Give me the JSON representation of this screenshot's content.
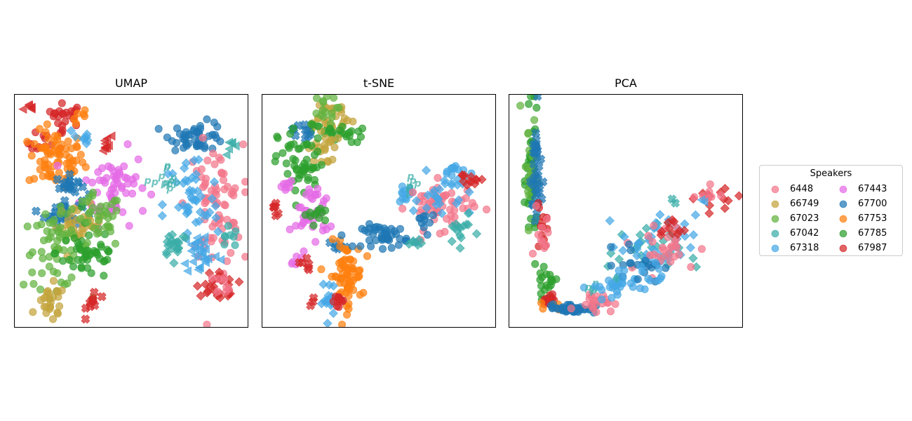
{
  "chart_data": {
    "type": "scatter",
    "legend": {
      "title": "Speakers",
      "placement": "right",
      "entries": [
        {
          "speaker": "6448",
          "color": "#f3768a"
        },
        {
          "speaker": "66749",
          "color": "#c3a43c"
        },
        {
          "speaker": "67023",
          "color": "#62b340"
        },
        {
          "speaker": "67042",
          "color": "#3aada8"
        },
        {
          "speaker": "67318",
          "color": "#45a8e6"
        },
        {
          "speaker": "67443",
          "color": "#e56be6"
        },
        {
          "speaker": "67700",
          "color": "#1f77b4"
        },
        {
          "speaker": "67753",
          "color": "#ff7f0e"
        },
        {
          "speaker": "67785",
          "color": "#2ca02c"
        },
        {
          "speaker": "67987",
          "color": "#d62728"
        }
      ]
    },
    "marker_shapes": [
      "circle",
      "x",
      "diamond",
      "triangle-left",
      "p-glyph"
    ],
    "grid": false,
    "axis_ticks": false,
    "panels": [
      {
        "title": "UMAP",
        "xlim": [
          0,
          100
        ],
        "ylim": [
          0,
          100
        ],
        "clusters": [
          {
            "speaker": "67987",
            "marker": "triangle-left",
            "x": 7,
            "y": 94,
            "sx": 1.5,
            "sy": 1.0,
            "n": 6
          },
          {
            "speaker": "67987",
            "marker": "circle",
            "x": 22,
            "y": 91,
            "sx": 4,
            "sy": 2.5,
            "n": 22
          },
          {
            "speaker": "67753",
            "marker": "circle",
            "x": 29,
            "y": 90,
            "sx": 2,
            "sy": 2,
            "n": 6
          },
          {
            "speaker": "67987",
            "marker": "circle",
            "x": 14,
            "y": 79,
            "sx": 4,
            "sy": 3,
            "n": 14
          },
          {
            "speaker": "67753",
            "marker": "circle",
            "x": 18,
            "y": 72,
            "sx": 6,
            "sy": 6,
            "n": 70
          },
          {
            "speaker": "67318",
            "marker": "diamond",
            "x": 29,
            "y": 81,
            "sx": 2,
            "sy": 3,
            "n": 8
          },
          {
            "speaker": "67987",
            "marker": "triangle-left",
            "x": 38,
            "y": 79,
            "sx": 2.5,
            "sy": 2,
            "n": 10
          },
          {
            "speaker": "67443",
            "marker": "circle",
            "x": 43,
            "y": 60,
            "sx": 7,
            "sy": 8,
            "n": 60
          },
          {
            "speaker": "67700",
            "marker": "x",
            "x": 24,
            "y": 61,
            "sx": 3,
            "sy": 2,
            "n": 20
          },
          {
            "speaker": "67700",
            "marker": "x",
            "x": 21,
            "y": 49,
            "sx": 4,
            "sy": 3,
            "n": 30
          },
          {
            "speaker": "66749",
            "marker": "circle",
            "x": 28,
            "y": 44,
            "sx": 5,
            "sy": 4,
            "n": 32
          },
          {
            "speaker": "67023",
            "marker": "circle",
            "x": 18,
            "y": 33,
            "sx": 7,
            "sy": 8,
            "n": 60
          },
          {
            "speaker": "67785",
            "marker": "circle",
            "x": 32,
            "y": 32,
            "sx": 7,
            "sy": 6,
            "n": 45
          },
          {
            "speaker": "67023",
            "marker": "circle",
            "x": 36,
            "y": 45,
            "sx": 5,
            "sy": 6,
            "n": 35
          },
          {
            "speaker": "66749",
            "marker": "circle",
            "x": 16,
            "y": 10,
            "sx": 3,
            "sy": 4,
            "n": 25
          },
          {
            "speaker": "67987",
            "marker": "x",
            "x": 34,
            "y": 11,
            "sx": 1.5,
            "sy": 3,
            "n": 10
          },
          {
            "speaker": "67700",
            "marker": "circle",
            "x": 79,
            "y": 82,
            "sx": 6,
            "sy": 3,
            "n": 45
          },
          {
            "speaker": "67042",
            "marker": "triangle-left",
            "x": 93,
            "y": 77,
            "sx": 1.5,
            "sy": 1.5,
            "n": 6
          },
          {
            "speaker": "6448",
            "marker": "circle",
            "x": 86,
            "y": 52,
            "sx": 6,
            "sy": 13,
            "n": 75
          },
          {
            "speaker": "67318",
            "marker": "diamond",
            "x": 76,
            "y": 52,
            "sx": 6,
            "sy": 12,
            "n": 45
          },
          {
            "speaker": "67318",
            "marker": "triangle-left",
            "x": 80,
            "y": 32,
            "sx": 4,
            "sy": 5,
            "n": 28
          },
          {
            "speaker": "67042",
            "marker": "diamond",
            "x": 69,
            "y": 36,
            "sx": 3,
            "sy": 3,
            "n": 20
          },
          {
            "speaker": "67042",
            "marker": "p-glyph",
            "x": 66,
            "y": 62,
            "sx": 3,
            "sy": 4,
            "n": 12
          },
          {
            "speaker": "67042",
            "marker": "circle",
            "x": 90,
            "y": 38,
            "sx": 3,
            "sy": 3,
            "n": 8
          },
          {
            "speaker": "67987",
            "marker": "diamond",
            "x": 85,
            "y": 20,
            "sx": 3,
            "sy": 4,
            "n": 15
          },
          {
            "speaker": "67987",
            "marker": "diamond",
            "x": 92,
            "y": 17,
            "sx": 2,
            "sy": 3,
            "n": 10
          },
          {
            "speaker": "6448",
            "marker": "circle",
            "x": 90,
            "y": 19,
            "sx": 2,
            "sy": 2,
            "n": 8
          }
        ]
      },
      {
        "title": "t-SNE",
        "xlim": [
          0,
          100
        ],
        "ylim": [
          0,
          100
        ],
        "clusters": [
          {
            "speaker": "66749",
            "marker": "circle",
            "x": 28,
            "y": 90,
            "sx": 6,
            "sy": 4,
            "n": 28
          },
          {
            "speaker": "67023",
            "marker": "circle",
            "x": 26,
            "y": 93,
            "sx": 3,
            "sy": 3,
            "n": 15
          },
          {
            "speaker": "67785",
            "marker": "circle",
            "x": 32,
            "y": 83,
            "sx": 6,
            "sy": 2,
            "n": 25
          },
          {
            "speaker": "66749",
            "marker": "circle",
            "x": 26,
            "y": 77,
            "sx": 3,
            "sy": 4,
            "n": 20
          },
          {
            "speaker": "67700",
            "marker": "x",
            "x": 17,
            "y": 84,
            "sx": 2,
            "sy": 2,
            "n": 10
          },
          {
            "speaker": "67785",
            "marker": "circle",
            "x": 17,
            "y": 70,
            "sx": 5,
            "sy": 8,
            "n": 55
          },
          {
            "speaker": "67443",
            "marker": "circle",
            "x": 11,
            "y": 60,
            "sx": 2,
            "sy": 1.5,
            "n": 8
          },
          {
            "speaker": "67443",
            "marker": "circle",
            "x": 22,
            "y": 56,
            "sx": 2,
            "sy": 2,
            "n": 10
          },
          {
            "speaker": "67987",
            "marker": "x",
            "x": 6,
            "y": 51,
            "sx": 1,
            "sy": 2,
            "n": 6
          },
          {
            "speaker": "67443",
            "marker": "circle",
            "x": 21,
            "y": 47,
            "sx": 4,
            "sy": 4,
            "n": 28
          },
          {
            "speaker": "67785",
            "marker": "circle",
            "x": 24,
            "y": 48,
            "sx": 3,
            "sy": 2,
            "n": 12
          },
          {
            "speaker": "67700",
            "marker": "x",
            "x": 33,
            "y": 35,
            "sx": 2,
            "sy": 1,
            "n": 6
          },
          {
            "speaker": "67443",
            "marker": "circle",
            "x": 16,
            "y": 30,
            "sx": 2,
            "sy": 1.5,
            "n": 6
          },
          {
            "speaker": "67987",
            "marker": "x",
            "x": 19,
            "y": 27,
            "sx": 1.5,
            "sy": 1.5,
            "n": 6
          },
          {
            "speaker": "67753",
            "marker": "circle",
            "x": 36,
            "y": 22,
            "sx": 3.5,
            "sy": 7,
            "n": 65
          },
          {
            "speaker": "67318",
            "marker": "diamond",
            "x": 29,
            "y": 12,
            "sx": 1.5,
            "sy": 4,
            "n": 15
          },
          {
            "speaker": "67987",
            "marker": "circle",
            "x": 34,
            "y": 11,
            "sx": 2,
            "sy": 1.5,
            "n": 12
          },
          {
            "speaker": "67987",
            "marker": "x",
            "x": 22,
            "y": 12,
            "sx": 0.8,
            "sy": 1,
            "n": 3
          },
          {
            "speaker": "67700",
            "marker": "circle",
            "x": 53,
            "y": 39,
            "sx": 5,
            "sy": 2.5,
            "n": 45
          },
          {
            "speaker": "67318",
            "marker": "circle",
            "x": 61,
            "y": 57,
            "sx": 2,
            "sy": 1.5,
            "n": 12
          },
          {
            "speaker": "67042",
            "marker": "p-glyph",
            "x": 65,
            "y": 61,
            "sx": 2,
            "sy": 2,
            "n": 6
          },
          {
            "speaker": "6448",
            "marker": "circle",
            "x": 77,
            "y": 52,
            "sx": 7,
            "sy": 5,
            "n": 55
          },
          {
            "speaker": "67318",
            "marker": "diamond",
            "x": 77,
            "y": 56,
            "sx": 6,
            "sy": 5,
            "n": 25
          },
          {
            "speaker": "67318",
            "marker": "circle",
            "x": 83,
            "y": 67,
            "sx": 2.5,
            "sy": 1.5,
            "n": 12
          },
          {
            "speaker": "67987",
            "marker": "diamond",
            "x": 89,
            "y": 63,
            "sx": 3,
            "sy": 2,
            "n": 12
          },
          {
            "speaker": "67042",
            "marker": "diamond",
            "x": 85,
            "y": 41,
            "sx": 3,
            "sy": 3,
            "n": 15
          },
          {
            "speaker": "67042",
            "marker": "diamond",
            "x": 65,
            "y": 37,
            "sx": 2,
            "sy": 1.5,
            "n": 6
          },
          {
            "speaker": "67700",
            "marker": "circle",
            "x": 70,
            "y": 47,
            "sx": 2.5,
            "sy": 3,
            "n": 10
          }
        ]
      },
      {
        "title": "PCA",
        "xlim": [
          0,
          100
        ],
        "ylim": [
          0,
          100
        ],
        "clusters": [
          {
            "speaker": "67023",
            "marker": "circle",
            "x": 5,
            "y": 95,
            "sx": 0.5,
            "sy": 0.5,
            "n": 1
          },
          {
            "speaker": "67785",
            "marker": "circle",
            "x": 10,
            "y": 62,
            "sx": 1.2,
            "sy": 14,
            "n": 50
          },
          {
            "speaker": "67023",
            "marker": "circle",
            "x": 9,
            "y": 67,
            "sx": 1.2,
            "sy": 12,
            "n": 20
          },
          {
            "speaker": "67700",
            "marker": "x",
            "x": 12,
            "y": 65,
            "sx": 1.2,
            "sy": 14,
            "n": 35
          },
          {
            "speaker": "67987",
            "marker": "circle",
            "x": 14,
            "y": 42,
            "sx": 1.2,
            "sy": 6,
            "n": 12
          },
          {
            "speaker": "6448",
            "marker": "circle",
            "x": 14,
            "y": 37,
            "sx": 1.5,
            "sy": 6,
            "n": 10
          },
          {
            "speaker": "67785",
            "marker": "circle",
            "x": 16,
            "y": 18,
            "sx": 2,
            "sy": 3,
            "n": 20
          },
          {
            "speaker": "67987",
            "marker": "circle",
            "x": 18,
            "y": 12,
            "sx": 2,
            "sy": 1.5,
            "n": 15
          },
          {
            "speaker": "67753",
            "marker": "circle",
            "x": 20,
            "y": 9,
            "sx": 2,
            "sy": 1,
            "n": 6
          },
          {
            "speaker": "67700",
            "marker": "circle",
            "x": 27,
            "y": 8,
            "sx": 5,
            "sy": 1,
            "n": 45
          },
          {
            "speaker": "6448",
            "marker": "circle",
            "x": 37,
            "y": 11,
            "sx": 4,
            "sy": 2,
            "n": 20
          },
          {
            "speaker": "67318",
            "marker": "circle",
            "x": 44,
            "y": 17,
            "sx": 5,
            "sy": 3,
            "n": 25
          },
          {
            "speaker": "67042",
            "marker": "p-glyph",
            "x": 35,
            "y": 17,
            "sx": 2,
            "sy": 1.5,
            "n": 5
          },
          {
            "speaker": "67042",
            "marker": "diamond",
            "x": 58,
            "y": 32,
            "sx": 8,
            "sy": 6,
            "n": 30
          },
          {
            "speaker": "67318",
            "marker": "diamond",
            "x": 64,
            "y": 36,
            "sx": 8,
            "sy": 6,
            "n": 35
          },
          {
            "speaker": "6448",
            "marker": "circle",
            "x": 66,
            "y": 34,
            "sx": 8,
            "sy": 6,
            "n": 30
          },
          {
            "speaker": "67700",
            "marker": "circle",
            "x": 56,
            "y": 27,
            "sx": 5,
            "sy": 4,
            "n": 20
          },
          {
            "speaker": "67318",
            "marker": "circle",
            "x": 57,
            "y": 22,
            "sx": 6,
            "sy": 3,
            "n": 15
          },
          {
            "speaker": "67987",
            "marker": "diamond",
            "x": 70,
            "y": 42,
            "sx": 3,
            "sy": 2.5,
            "n": 10
          },
          {
            "speaker": "67987",
            "marker": "diamond",
            "x": 88,
            "y": 56,
            "sx": 6,
            "sy": 3,
            "n": 12
          },
          {
            "speaker": "6448",
            "marker": "circle",
            "x": 85,
            "y": 57,
            "sx": 3,
            "sy": 2,
            "n": 8
          },
          {
            "speaker": "67318",
            "marker": "triangle-left",
            "x": 82,
            "y": 54,
            "sx": 1,
            "sy": 1,
            "n": 2
          },
          {
            "speaker": "67042",
            "marker": "x",
            "x": 71,
            "y": 54,
            "sx": 1,
            "sy": 1,
            "n": 2
          }
        ]
      }
    ]
  }
}
